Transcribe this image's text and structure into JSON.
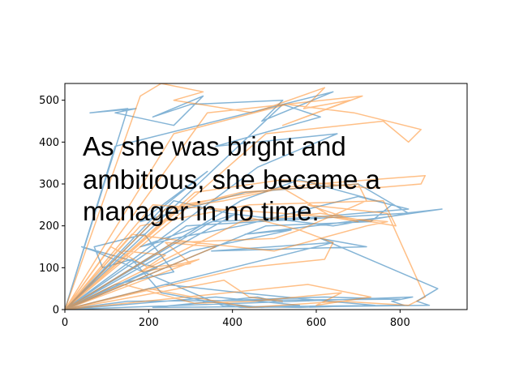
{
  "chart_data": {
    "type": "line",
    "title": "",
    "xlabel": "",
    "ylabel": "",
    "xlim": [
      0,
      960
    ],
    "ylim": [
      0,
      540
    ],
    "xticks": [
      0,
      200,
      400,
      600,
      800
    ],
    "yticks": [
      0,
      100,
      200,
      300,
      400,
      500
    ],
    "grid": false,
    "legend": "none",
    "annotation_lines": [
      "As she was bright and",
      "ambitious, she became a",
      "manager in no time."
    ],
    "series": [
      {
        "color": "#1f77b4",
        "opacity": 0.55,
        "x": [
          0,
          150,
          60,
          170,
          120,
          260,
          330,
          210,
          300,
          520,
          470,
          640,
          120,
          0,
          240,
          340,
          180,
          430,
          700,
          820,
          640,
          390,
          260,
          0,
          420,
          560,
          780,
          730,
          480,
          0,
          640,
          350,
          720,
          610,
          890,
          840,
          870,
          420,
          230,
          160,
          90,
          70,
          190,
          260,
          120,
          0,
          360,
          560,
          470,
          330,
          620,
          800,
          150,
          0,
          300,
          540,
          430,
          760,
          900,
          810,
          290,
          0,
          240,
          420,
          630,
          740,
          560,
          380,
          70,
          40,
          220,
          0,
          460,
          650,
          360,
          610,
          520,
          0,
          410,
          180,
          260,
          420,
          700,
          820,
          590,
          350,
          0,
          830,
          780,
          810,
          210,
          460,
          520
        ],
        "y": [
          0,
          480,
          470,
          480,
          470,
          440,
          510,
          460,
          490,
          500,
          450,
          520,
          390,
          0,
          250,
          330,
          210,
          280,
          300,
          230,
          200,
          230,
          260,
          0,
          260,
          310,
          250,
          210,
          200,
          0,
          160,
          140,
          150,
          170,
          50,
          20,
          10,
          5,
          40,
          120,
          100,
          150,
          180,
          90,
          60,
          0,
          30,
          10,
          5,
          20,
          30,
          25,
          20,
          0,
          140,
          190,
          180,
          220,
          240,
          230,
          200,
          0,
          60,
          40,
          20,
          10,
          5,
          8,
          140,
          150,
          100,
          0,
          340,
          420,
          390,
          460,
          490,
          0,
          230,
          150,
          170,
          200,
          270,
          240,
          220,
          210,
          0,
          30,
          20,
          10,
          5,
          30,
          15
        ]
      },
      {
        "color": "#ff7f0e",
        "opacity": 0.5,
        "x": [
          0,
          180,
          230,
          330,
          260,
          450,
          620,
          570,
          680,
          520,
          710,
          340,
          0,
          280,
          510,
          600,
          860,
          850,
          730,
          520,
          310,
          0,
          180,
          440,
          760,
          790,
          610,
          420,
          0,
          240,
          380,
          520,
          640,
          700,
          580,
          770,
          860,
          820,
          660,
          440,
          200,
          0,
          160,
          310,
          500,
          720,
          770,
          520,
          210,
          0,
          320,
          280,
          200,
          110,
          0,
          440,
          560,
          640,
          620,
          430,
          0,
          580,
          730,
          600,
          660,
          450,
          310,
          140,
          0,
          260,
          500,
          560,
          720,
          700,
          420,
          300,
          0,
          140,
          240,
          180,
          300,
          240,
          360,
          0,
          480,
          760,
          820,
          850,
          690,
          530,
          260,
          0,
          380,
          440,
          520
        ],
        "y": [
          0,
          510,
          540,
          520,
          500,
          470,
          530,
          480,
          500,
          440,
          510,
          470,
          0,
          250,
          290,
          300,
          320,
          300,
          290,
          310,
          280,
          0,
          200,
          250,
          260,
          200,
          230,
          210,
          0,
          240,
          260,
          290,
          220,
          210,
          250,
          230,
          30,
          10,
          20,
          5,
          50,
          0,
          180,
          160,
          140,
          200,
          210,
          230,
          250,
          0,
          120,
          110,
          100,
          150,
          0,
          220,
          190,
          160,
          120,
          100,
          0,
          60,
          30,
          10,
          40,
          20,
          15,
          60,
          0,
          160,
          170,
          190,
          260,
          300,
          280,
          250,
          0,
          140,
          130,
          90,
          110,
          160,
          150,
          0,
          420,
          450,
          400,
          430,
          470,
          490,
          420,
          0,
          70,
          30,
          20
        ]
      }
    ]
  }
}
